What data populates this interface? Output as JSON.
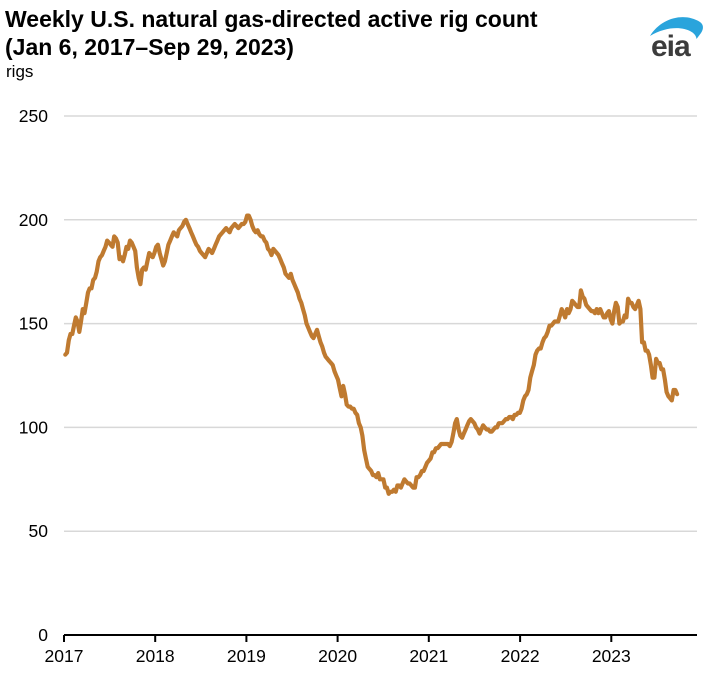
{
  "header": {
    "title_line1": "Weekly U.S. natural gas-directed active rig count",
    "title_line2": "(Jan 6, 2017–Sep 29, 2023)",
    "unit_label": "rigs"
  },
  "logo": {
    "text": "eia",
    "text_color": "#3C3C3C",
    "swoosh_color": "#2AA4DC"
  },
  "chart_data": {
    "type": "line",
    "title": "Weekly U.S. natural gas-directed active rig count (Jan 6, 2017–Sep 29, 2023)",
    "xlabel": "",
    "ylabel": "rigs",
    "x_ticks": [
      2017,
      2018,
      2019,
      2020,
      2021,
      2022,
      2023
    ],
    "y_ticks": [
      0,
      50,
      100,
      150,
      200,
      250
    ],
    "x_range": [
      2017.0,
      2023.94
    ],
    "y_range": [
      0,
      250
    ],
    "grid": "horizontal",
    "grid_color": "#D8D8D8",
    "axis_color": "#000000",
    "legend": "none",
    "series": [
      {
        "name": "U.S. natural gas-directed active rig count",
        "color": "#BF7A30",
        "cadence": "weekly",
        "x_start_year": 2017.014,
        "values": [
          135,
          136,
          142,
          145,
          145,
          149,
          153,
          151,
          146,
          151,
          157,
          155,
          160,
          165,
          167,
          167,
          171,
          172,
          175,
          180,
          182,
          183,
          185,
          187,
          190,
          189,
          188,
          187,
          192,
          191,
          189,
          181,
          182,
          180,
          183,
          187,
          186,
          190,
          189,
          187,
          185,
          177,
          172,
          169,
          176,
          177,
          176,
          180,
          184,
          183,
          182,
          184,
          187,
          188,
          184,
          181,
          178,
          180,
          184,
          188,
          190,
          192,
          194,
          193,
          192,
          195,
          196,
          197,
          199,
          200,
          198,
          196,
          194,
          192,
          190,
          188,
          187,
          185,
          184,
          183,
          182,
          184,
          186,
          185,
          184,
          186,
          188,
          190,
          192,
          193,
          194,
          195,
          196,
          195,
          194,
          196,
          197,
          198,
          197,
          196,
          197,
          198,
          198,
          199,
          202,
          202,
          200,
          197,
          195,
          194,
          195,
          193,
          192,
          192,
          190,
          189,
          186,
          185,
          183,
          186,
          185,
          184,
          183,
          181,
          179,
          177,
          174,
          173,
          172,
          174,
          171,
          169,
          167,
          165,
          162,
          160,
          157,
          154,
          150,
          148,
          146,
          144,
          143,
          145,
          147,
          144,
          141,
          139,
          136,
          134,
          133,
          132,
          131,
          130,
          127,
          125,
          123,
          119,
          115,
          120,
          116,
          111,
          110,
          110,
          109,
          109,
          107,
          106,
          102,
          100,
          96,
          89,
          85,
          81,
          80,
          79,
          77,
          77,
          76,
          78,
          75,
          75,
          75,
          71,
          71,
          68,
          69,
          69,
          70,
          69,
          72,
          72,
          71,
          73,
          75,
          74,
          73,
          73,
          72,
          71,
          71,
          76,
          76,
          77,
          79,
          79,
          81,
          83,
          84,
          85,
          88,
          88,
          90,
          90,
          91,
          92,
          92,
          92,
          92,
          92,
          91,
          93,
          97,
          102,
          104,
          99,
          96,
          95,
          97,
          99,
          101,
          103,
          104,
          103,
          102,
          100,
          99,
          97,
          99,
          101,
          100,
          99,
          99,
          98,
          98,
          99,
          100,
          100,
          102,
          102,
          102,
          103,
          104,
          104,
          105,
          105,
          104,
          106,
          106,
          107,
          107,
          109,
          113,
          115,
          116,
          118,
          124,
          127,
          130,
          135,
          137,
          138,
          138,
          141,
          143,
          144,
          146,
          149,
          149,
          150,
          151,
          151,
          151,
          154,
          157,
          155,
          153,
          157,
          155,
          157,
          161,
          160,
          159,
          158,
          158,
          166,
          163,
          162,
          159,
          158,
          157,
          156,
          156,
          155,
          157,
          155,
          157,
          155,
          153,
          153,
          155,
          156,
          152,
          150,
          156,
          160,
          158,
          150,
          151,
          151,
          154,
          153,
          162,
          160,
          160,
          158,
          157,
          159,
          161,
          157,
          141,
          141,
          137,
          137,
          135,
          130,
          124,
          124,
          133,
          131,
          131,
          128,
          128,
          123,
          117,
          115,
          114,
          113,
          118,
          118,
          116
        ]
      }
    ]
  }
}
